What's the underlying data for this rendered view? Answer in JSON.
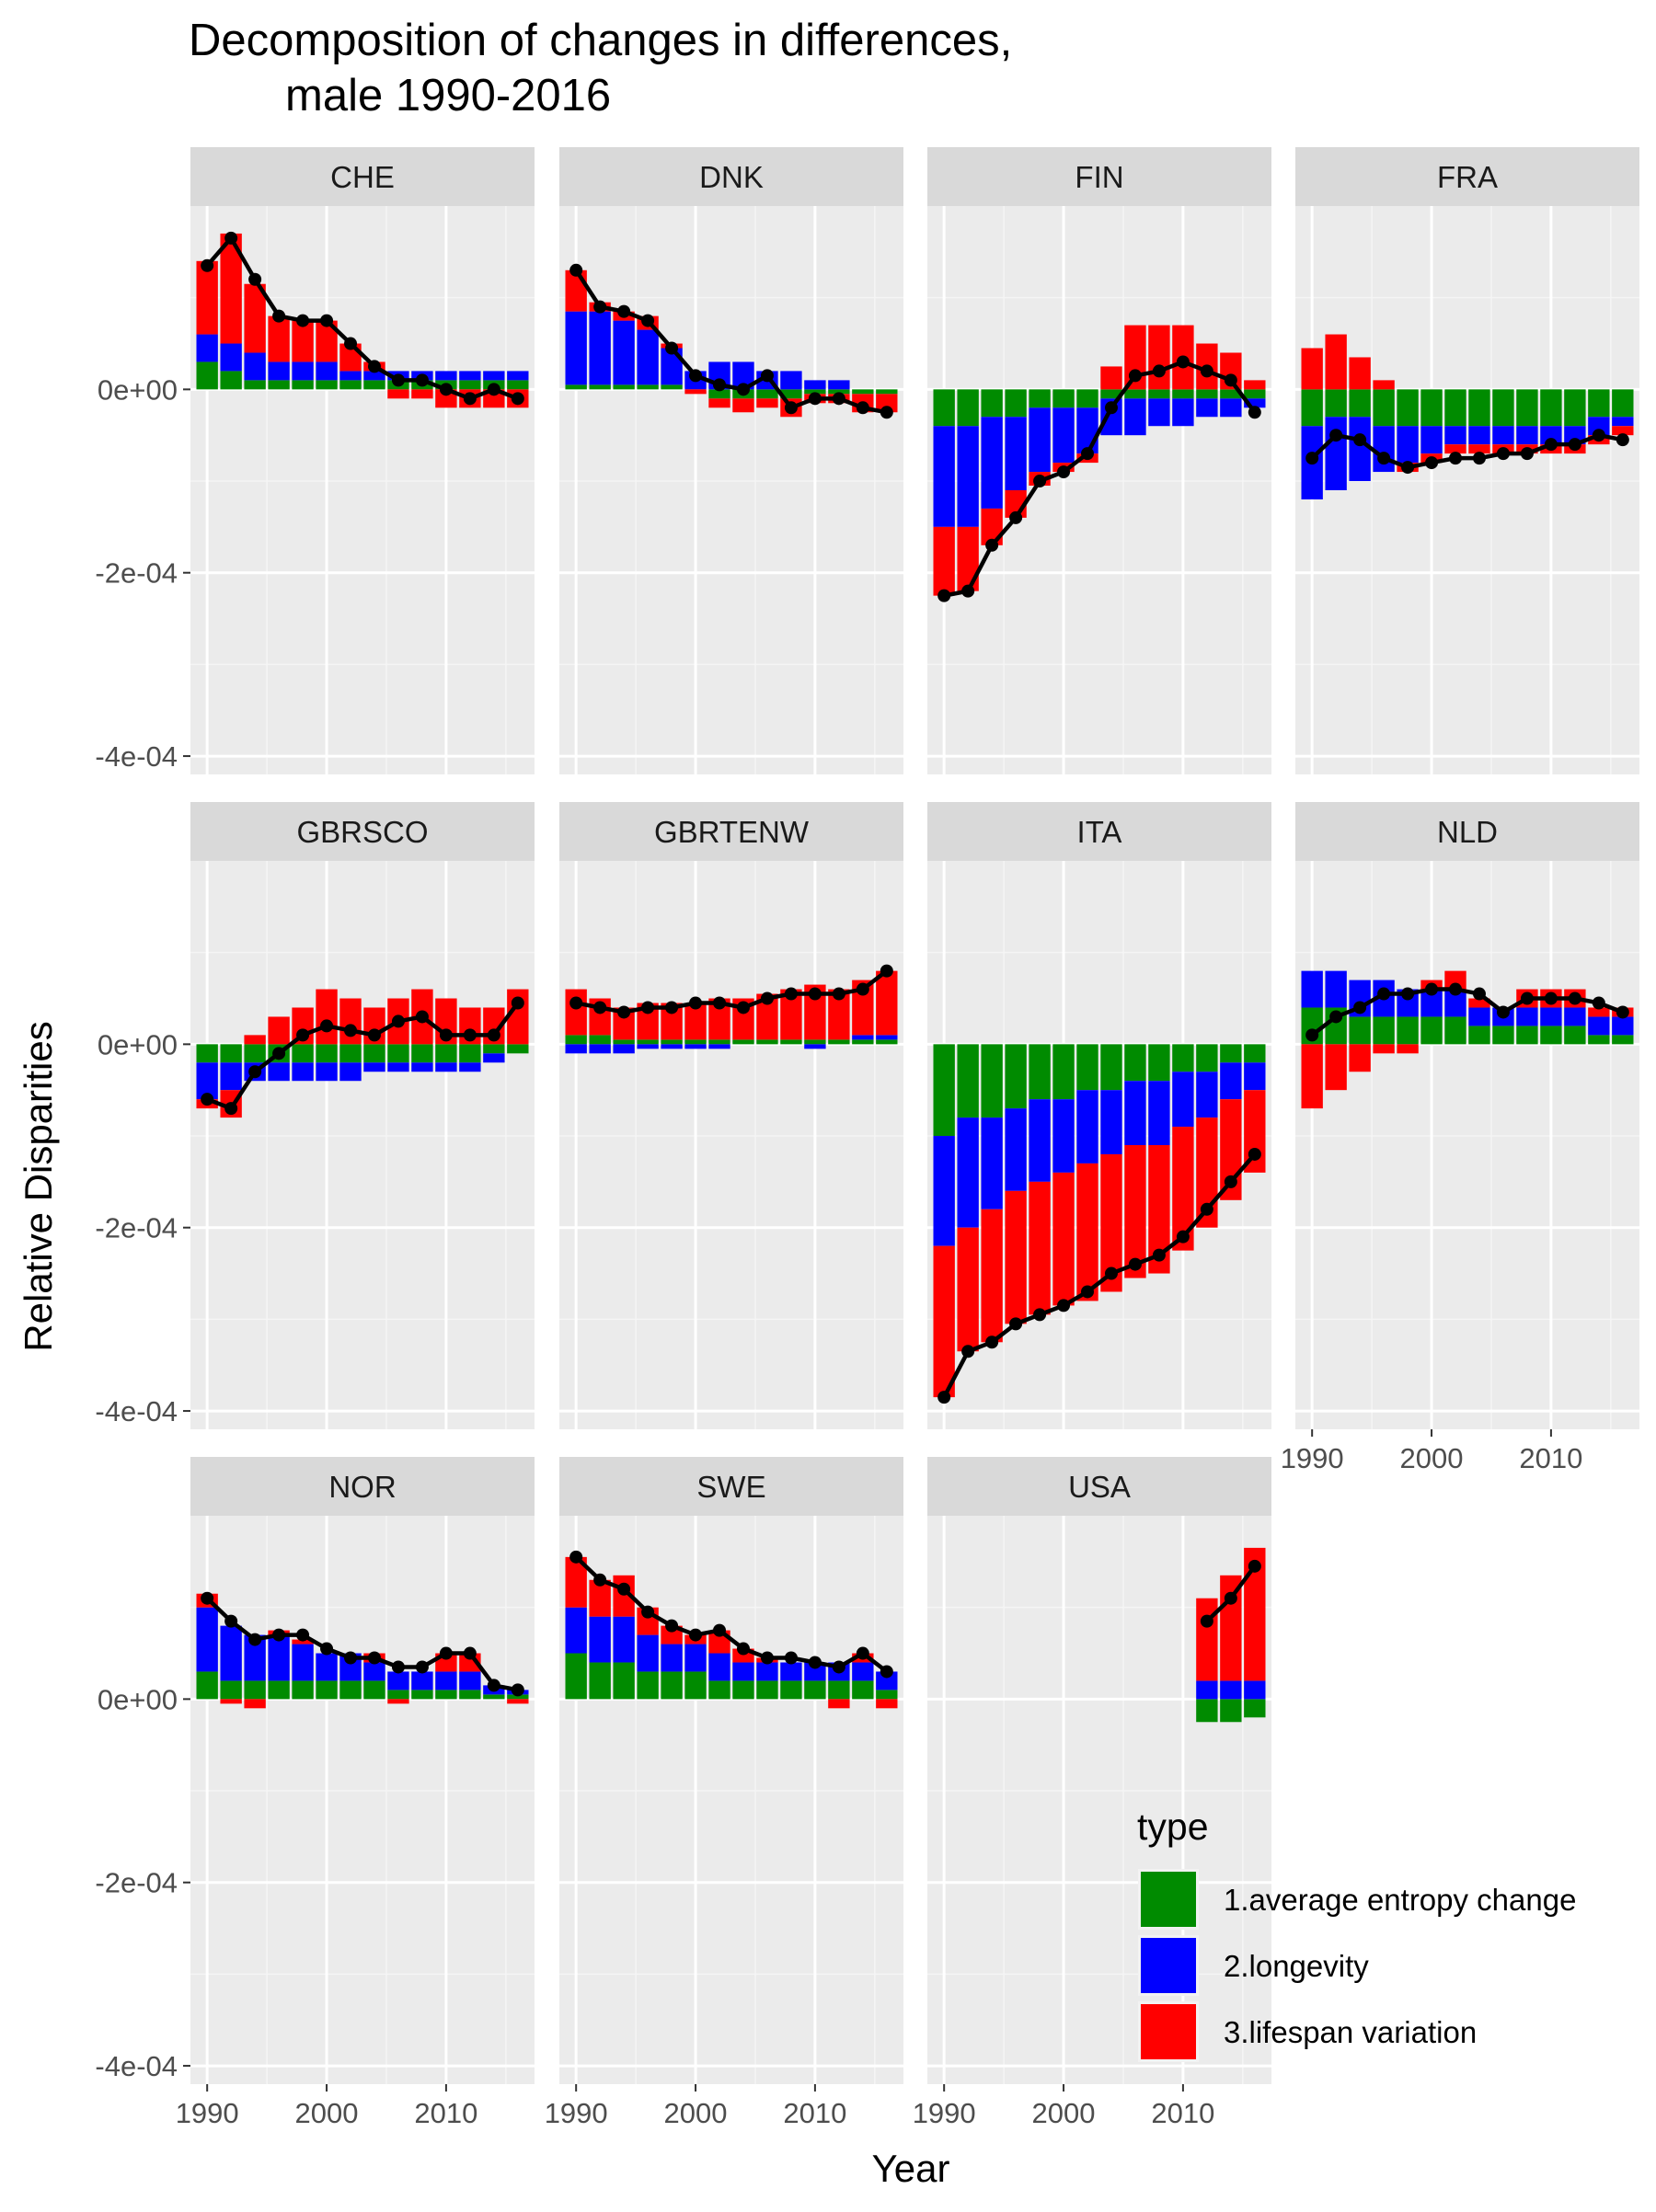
{
  "chart_data": {
    "type": "bar",
    "title_line1": "Decomposition of changes in differences,",
    "title_line2": "male 1990-2016",
    "xlabel": "Year",
    "ylabel": "Relative Disparities",
    "ylim": [
      -0.00042,
      0.0002
    ],
    "xlim": [
      1988.6,
      2017.4
    ],
    "y_ticks": [
      {
        "value": 0.0,
        "label": "0e+00"
      },
      {
        "value": -0.0002,
        "label": "-2e-04"
      },
      {
        "value": -0.0004,
        "label": "-4e-04"
      }
    ],
    "y_minor": [
      0.0001,
      -0.0001,
      -0.0003
    ],
    "x_ticks": [
      {
        "value": 1990,
        "label": "1990"
      },
      {
        "value": 2000,
        "label": "2000"
      },
      {
        "value": 2010,
        "label": "2010"
      }
    ],
    "x_minor": [
      1995,
      2005,
      2015
    ],
    "bar_width_years": 1.8,
    "legend": {
      "title": "type",
      "entries": [
        {
          "key": "avg",
          "label": "1.average entropy change",
          "color": "#008B00"
        },
        {
          "key": "lon",
          "label": "2.longevity",
          "color": "#0000FF"
        },
        {
          "key": "var",
          "label": "3.lifespan variation",
          "color": "#FF0000"
        }
      ]
    },
    "colors": {
      "avg": "#008B00",
      "lon": "#0000FF",
      "var": "#FF0000",
      "line": "#000000",
      "panel_bg": "#EBEBEB",
      "strip_bg": "#D9D9D9",
      "grid": "#FFFFFF"
    },
    "panels": [
      {
        "name": "CHE",
        "years": [
          1990,
          1992,
          1994,
          1996,
          1998,
          2000,
          2002,
          2004,
          2006,
          2008,
          2010,
          2012,
          2014,
          2016
        ],
        "avg": [
          3e-05,
          2e-05,
          1e-05,
          1e-05,
          1e-05,
          1e-05,
          1e-05,
          1e-05,
          1e-05,
          1e-05,
          1e-05,
          1e-05,
          1e-05,
          1e-05
        ],
        "lon": [
          3e-05,
          3e-05,
          3e-05,
          2e-05,
          2e-05,
          2e-05,
          1e-05,
          1e-05,
          1e-05,
          1e-05,
          1e-05,
          1e-05,
          1e-05,
          1e-05
        ],
        "var": [
          8e-05,
          0.00012,
          7.5e-05,
          5e-05,
          4.5e-05,
          4.5e-05,
          3e-05,
          1e-05,
          -1e-05,
          -1e-05,
          -2e-05,
          -2e-05,
          -2e-05,
          -2e-05
        ],
        "total": [
          0.000135,
          0.000165,
          0.00012,
          8e-05,
          7.5e-05,
          7.5e-05,
          5e-05,
          2.5e-05,
          1e-05,
          1e-05,
          0.0,
          -1e-05,
          0.0,
          -1e-05
        ]
      },
      {
        "name": "DNK",
        "years": [
          1990,
          1992,
          1994,
          1996,
          1998,
          2000,
          2002,
          2004,
          2006,
          2008,
          2010,
          2012,
          2014,
          2016
        ],
        "avg": [
          5e-06,
          5e-06,
          5e-06,
          5e-06,
          5e-06,
          0.0,
          -1e-05,
          -1e-05,
          -1e-05,
          -1e-05,
          -5e-06,
          -5e-06,
          -5e-06,
          -5e-06
        ],
        "lon": [
          8e-05,
          8e-05,
          7e-05,
          6e-05,
          4e-05,
          2e-05,
          3e-05,
          3e-05,
          2e-05,
          2e-05,
          1e-05,
          1e-05,
          0.0,
          0.0
        ],
        "var": [
          4.5e-05,
          1e-05,
          1e-05,
          1.5e-05,
          5e-06,
          -5e-06,
          -1e-05,
          -1.5e-05,
          -1e-05,
          -2e-05,
          -1e-05,
          -1e-05,
          -2e-05,
          -2e-05
        ],
        "total": [
          0.00013,
          9e-05,
          8.5e-05,
          7.5e-05,
          4.5e-05,
          1.5e-05,
          5e-06,
          0.0,
          1.5e-05,
          -2e-05,
          -1e-05,
          -1e-05,
          -2e-05,
          -2.5e-05
        ]
      },
      {
        "name": "FIN",
        "years": [
          1990,
          1992,
          1994,
          1996,
          1998,
          2000,
          2002,
          2004,
          2006,
          2008,
          2010,
          2012,
          2014,
          2016
        ],
        "avg": [
          -4e-05,
          -4e-05,
          -3e-05,
          -3e-05,
          -2e-05,
          -2e-05,
          -2e-05,
          -1e-05,
          -1e-05,
          -1e-05,
          -1e-05,
          -1e-05,
          -1e-05,
          -1e-05
        ],
        "lon": [
          -0.00011,
          -0.00011,
          -0.0001,
          -8e-05,
          -7e-05,
          -6e-05,
          -5e-05,
          -4e-05,
          -4e-05,
          -3e-05,
          -3e-05,
          -2e-05,
          -2e-05,
          -1e-05
        ],
        "var": [
          -7.5e-05,
          -7e-05,
          -4e-05,
          -3e-05,
          -1.5e-05,
          -1e-05,
          -1e-05,
          2.5e-05,
          7e-05,
          7e-05,
          7e-05,
          5e-05,
          4e-05,
          1e-05
        ],
        "total": [
          -0.000225,
          -0.00022,
          -0.00017,
          -0.00014,
          -0.0001,
          -9e-05,
          -7e-05,
          -2e-05,
          1.5e-05,
          2e-05,
          3e-05,
          2e-05,
          1e-05,
          -2.5e-05
        ]
      },
      {
        "name": "FRA",
        "years": [
          1990,
          1992,
          1994,
          1996,
          1998,
          2000,
          2002,
          2004,
          2006,
          2008,
          2010,
          2012,
          2014,
          2016
        ],
        "avg": [
          -4e-05,
          -3e-05,
          -3e-05,
          -4e-05,
          -4e-05,
          -4e-05,
          -4e-05,
          -4e-05,
          -4e-05,
          -4e-05,
          -4e-05,
          -4e-05,
          -3e-05,
          -3e-05
        ],
        "lon": [
          -8e-05,
          -8e-05,
          -7e-05,
          -5e-05,
          -4e-05,
          -3e-05,
          -2e-05,
          -2e-05,
          -2e-05,
          -2e-05,
          -2e-05,
          -2e-05,
          -2e-05,
          -1e-05
        ],
        "var": [
          4.5e-05,
          6e-05,
          3.5e-05,
          1e-05,
          -1e-05,
          -1e-05,
          -1e-05,
          -1e-05,
          -1e-05,
          -1e-05,
          -1e-05,
          -1e-05,
          -1e-05,
          -1e-05
        ],
        "total": [
          -7.5e-05,
          -5e-05,
          -5.5e-05,
          -7.5e-05,
          -8.5e-05,
          -8e-05,
          -7.5e-05,
          -7.5e-05,
          -7e-05,
          -7e-05,
          -6e-05,
          -6e-05,
          -5e-05,
          -5.5e-05
        ]
      },
      {
        "name": "GBRSCO",
        "years": [
          1990,
          1992,
          1994,
          1996,
          1998,
          2000,
          2002,
          2004,
          2006,
          2008,
          2010,
          2012,
          2014,
          2016
        ],
        "avg": [
          -2e-05,
          -2e-05,
          -2e-05,
          -2e-05,
          -2e-05,
          -2e-05,
          -2e-05,
          -2e-05,
          -2e-05,
          -2e-05,
          -2e-05,
          -2e-05,
          -1e-05,
          -1e-05
        ],
        "lon": [
          -4e-05,
          -3e-05,
          -2e-05,
          -2e-05,
          -2e-05,
          -2e-05,
          -2e-05,
          -1e-05,
          -1e-05,
          -1e-05,
          -1e-05,
          -1e-05,
          -1e-05,
          0.0
        ],
        "var": [
          -1e-05,
          -3e-05,
          1e-05,
          3e-05,
          4e-05,
          6e-05,
          5e-05,
          4e-05,
          5e-05,
          6e-05,
          5e-05,
          4e-05,
          4e-05,
          6e-05
        ],
        "total": [
          -6e-05,
          -7e-05,
          -3e-05,
          -1e-05,
          1e-05,
          2e-05,
          1.5e-05,
          1e-05,
          2.5e-05,
          3e-05,
          1e-05,
          1e-05,
          1e-05,
          4.5e-05
        ]
      },
      {
        "name": "GBRTENW",
        "years": [
          1990,
          1992,
          1994,
          1996,
          1998,
          2000,
          2002,
          2004,
          2006,
          2008,
          2010,
          2012,
          2014,
          2016
        ],
        "avg": [
          1e-05,
          1e-05,
          5e-06,
          5e-06,
          5e-06,
          5e-06,
          5e-06,
          5e-06,
          5e-06,
          5e-06,
          5e-06,
          5e-06,
          5e-06,
          5e-06
        ],
        "lon": [
          -1e-05,
          -1e-05,
          -1e-05,
          -5e-06,
          -5e-06,
          -5e-06,
          -5e-06,
          0.0,
          0.0,
          0.0,
          -5e-06,
          0.0,
          5e-06,
          5e-06
        ],
        "var": [
          5e-05,
          4e-05,
          3.5e-05,
          4e-05,
          4e-05,
          4e-05,
          4.5e-05,
          4.5e-05,
          5e-05,
          5.5e-05,
          6e-05,
          5.5e-05,
          6e-05,
          7e-05
        ],
        "total": [
          4.5e-05,
          4e-05,
          3.5e-05,
          4e-05,
          4e-05,
          4.5e-05,
          4.5e-05,
          4e-05,
          5e-05,
          5.5e-05,
          5.5e-05,
          5.5e-05,
          6e-05,
          8e-05
        ]
      },
      {
        "name": "ITA",
        "years": [
          1990,
          1992,
          1994,
          1996,
          1998,
          2000,
          2002,
          2004,
          2006,
          2008,
          2010,
          2012,
          2014,
          2016
        ],
        "avg": [
          -0.0001,
          -8e-05,
          -8e-05,
          -7e-05,
          -6e-05,
          -6e-05,
          -5e-05,
          -5e-05,
          -4e-05,
          -4e-05,
          -3e-05,
          -3e-05,
          -2e-05,
          -2e-05
        ],
        "lon": [
          -0.00012,
          -0.00012,
          -0.0001,
          -9e-05,
          -9e-05,
          -8e-05,
          -8e-05,
          -7e-05,
          -7e-05,
          -7e-05,
          -6e-05,
          -5e-05,
          -4e-05,
          -3e-05
        ],
        "var": [
          -0.000165,
          -0.000135,
          -0.000145,
          -0.000145,
          -0.000145,
          -0.000145,
          -0.00015,
          -0.00015,
          -0.000145,
          -0.00014,
          -0.000135,
          -0.00012,
          -0.00011,
          -9e-05
        ],
        "total": [
          -0.000385,
          -0.000335,
          -0.000325,
          -0.000305,
          -0.000295,
          -0.000285,
          -0.00027,
          -0.00025,
          -0.00024,
          -0.00023,
          -0.00021,
          -0.00018,
          -0.00015,
          -0.00012
        ]
      },
      {
        "name": "NLD",
        "years": [
          1990,
          1992,
          1994,
          1996,
          1998,
          2000,
          2002,
          2004,
          2006,
          2008,
          2010,
          2012,
          2014,
          2016
        ],
        "avg": [
          4e-05,
          4e-05,
          3e-05,
          3e-05,
          3e-05,
          3e-05,
          3e-05,
          2e-05,
          2e-05,
          2e-05,
          2e-05,
          2e-05,
          1e-05,
          1e-05
        ],
        "lon": [
          4e-05,
          4e-05,
          4e-05,
          4e-05,
          3e-05,
          3e-05,
          3e-05,
          2e-05,
          2e-05,
          2e-05,
          2e-05,
          2e-05,
          2e-05,
          2e-05
        ],
        "var": [
          -7e-05,
          -5e-05,
          -3e-05,
          -1e-05,
          -1e-05,
          1e-05,
          2e-05,
          1e-05,
          0.0,
          2e-05,
          2e-05,
          2e-05,
          1e-05,
          1e-05
        ],
        "total": [
          1e-05,
          3e-05,
          4e-05,
          5.5e-05,
          5.5e-05,
          6e-05,
          6e-05,
          5.5e-05,
          3.5e-05,
          5e-05,
          5e-05,
          5e-05,
          4.5e-05,
          3.5e-05
        ]
      },
      {
        "name": "NOR",
        "years": [
          1990,
          1992,
          1994,
          1996,
          1998,
          2000,
          2002,
          2004,
          2006,
          2008,
          2010,
          2012,
          2014,
          2016
        ],
        "avg": [
          3e-05,
          2e-05,
          2e-05,
          2e-05,
          2e-05,
          2e-05,
          2e-05,
          2e-05,
          1e-05,
          1e-05,
          1e-05,
          1e-05,
          5e-06,
          5e-06
        ],
        "lon": [
          7e-05,
          6e-05,
          5e-05,
          5e-05,
          4e-05,
          3e-05,
          3e-05,
          2e-05,
          2e-05,
          2e-05,
          2e-05,
          2e-05,
          1e-05,
          5e-06
        ],
        "var": [
          1.5e-05,
          -5e-06,
          -1e-05,
          5e-06,
          5e-06,
          0.0,
          0.0,
          1e-05,
          -5e-06,
          0.0,
          2e-05,
          2e-05,
          0.0,
          -5e-06
        ],
        "total": [
          0.00011,
          8.5e-05,
          6.5e-05,
          7e-05,
          7e-05,
          5.5e-05,
          4.5e-05,
          4.5e-05,
          3.5e-05,
          3.5e-05,
          5e-05,
          5e-05,
          1.5e-05,
          1e-05
        ]
      },
      {
        "name": "SWE",
        "years": [
          1990,
          1992,
          1994,
          1996,
          1998,
          2000,
          2002,
          2004,
          2006,
          2008,
          2010,
          2012,
          2014,
          2016
        ],
        "avg": [
          5e-05,
          4e-05,
          4e-05,
          3e-05,
          3e-05,
          3e-05,
          2e-05,
          2e-05,
          2e-05,
          2e-05,
          2e-05,
          2e-05,
          2e-05,
          1e-05
        ],
        "lon": [
          5e-05,
          5e-05,
          5e-05,
          4e-05,
          3e-05,
          3e-05,
          3e-05,
          2e-05,
          2e-05,
          2e-05,
          2e-05,
          2e-05,
          2e-05,
          2e-05
        ],
        "var": [
          5.5e-05,
          4e-05,
          4.5e-05,
          3e-05,
          2e-05,
          1e-05,
          2.5e-05,
          1.5e-05,
          5e-06,
          0.0,
          0.0,
          -1e-05,
          1e-05,
          -1e-05
        ],
        "total": [
          0.000155,
          0.00013,
          0.00012,
          9.5e-05,
          8e-05,
          7e-05,
          7.5e-05,
          5.5e-05,
          4.5e-05,
          4.5e-05,
          4e-05,
          3.5e-05,
          5e-05,
          3e-05
        ]
      },
      {
        "name": "USA",
        "years": [
          2012,
          2014,
          2016
        ],
        "avg": [
          -2.5e-05,
          -2.5e-05,
          -2e-05
        ],
        "lon": [
          2e-05,
          2e-05,
          2e-05
        ],
        "var": [
          9e-05,
          0.000115,
          0.000145
        ],
        "total": [
          8.5e-05,
          0.00011,
          0.000145
        ]
      }
    ]
  }
}
